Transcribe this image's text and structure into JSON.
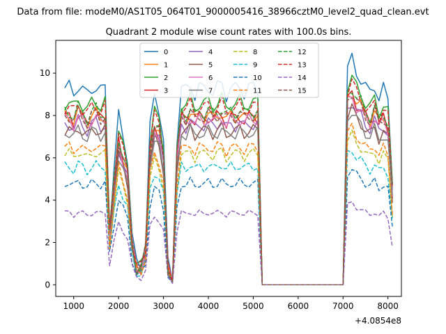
{
  "figure_title": "Data from file: modeM0/AS1T05_064T01_9000005416_38966cztM0_level2_quad_clean.evt",
  "chart_data": {
    "type": "line",
    "title": "Quadrant 2 module wise count rates with 100.0s bins.",
    "xlabel": "",
    "ylabel": "",
    "x_offset_label": "+4.0854e8",
    "xlim": [
      600,
      8300
    ],
    "ylim": [
      -0.55,
      11.55
    ],
    "x_ticks": [
      1000,
      2000,
      3000,
      4000,
      5000,
      6000,
      7000,
      8000
    ],
    "y_ticks": [
      0,
      2,
      4,
      6,
      8,
      10
    ],
    "legend_location": "upper center",
    "legend_columns": 4,
    "grid": false,
    "series": [
      {
        "name": "0",
        "color": "#1f77b4",
        "dash": "solid",
        "level": 9.3
      },
      {
        "name": "1",
        "color": "#ff7f0e",
        "dash": "solid",
        "level": 8.0
      },
      {
        "name": "2",
        "color": "#2ca02c",
        "dash": "solid",
        "level": 8.6
      },
      {
        "name": "3",
        "color": "#d62728",
        "dash": "solid",
        "level": 7.9
      },
      {
        "name": "4",
        "color": "#9467bd",
        "dash": "solid",
        "level": 7.6
      },
      {
        "name": "5",
        "color": "#8c564b",
        "dash": "solid",
        "level": 7.3
      },
      {
        "name": "6",
        "color": "#e377c2",
        "dash": "solid",
        "level": 7.8
      },
      {
        "name": "7",
        "color": "#7f7f7f",
        "dash": "solid",
        "level": 7.2
      },
      {
        "name": "8",
        "color": "#bcbd22",
        "dash": "dashed",
        "level": 6.2
      },
      {
        "name": "9",
        "color": "#17becf",
        "dash": "dashed",
        "level": 5.6
      },
      {
        "name": "10",
        "color": "#1f77b4",
        "dash": "dashed",
        "level": 4.8
      },
      {
        "name": "11",
        "color": "#ff7f0e",
        "dash": "dashed",
        "level": 6.5
      },
      {
        "name": "12",
        "color": "#2ca02c",
        "dash": "dashed",
        "level": 8.2
      },
      {
        "name": "13",
        "color": "#d62728",
        "dash": "dashed",
        "level": 8.4
      },
      {
        "name": "14",
        "color": "#9467bd",
        "dash": "dashed",
        "level": 3.4
      },
      {
        "name": "15",
        "color": "#8c564b",
        "dash": "dashed",
        "level": 8.0
      }
    ],
    "x": [
      800,
      900,
      1000,
      1100,
      1200,
      1300,
      1400,
      1500,
      1600,
      1700,
      1800,
      1900,
      2000,
      2100,
      2200,
      2300,
      2400,
      2500,
      2600,
      2700,
      2800,
      2900,
      3000,
      3100,
      3200,
      3300,
      3400,
      3500,
      3600,
      3700,
      3800,
      3900,
      4000,
      4100,
      4200,
      4300,
      4400,
      4500,
      4600,
      4700,
      4800,
      4900,
      5000,
      5100,
      5200,
      5300,
      5400,
      5500,
      5600,
      5700,
      5800,
      5900,
      6000,
      6100,
      6200,
      6300,
      6400,
      6500,
      6600,
      6700,
      6800,
      6900,
      7000,
      7100,
      7200,
      7300,
      7400,
      7500,
      7600,
      7700,
      7800,
      7900,
      8000,
      8100
    ],
    "shape": [
      1.0,
      1.0,
      0.97,
      1.02,
      0.99,
      0.96,
      1.0,
      1.01,
      0.98,
      1.0,
      0.3,
      0.6,
      0.85,
      0.75,
      0.65,
      0.25,
      0.1,
      0.1,
      0.2,
      0.8,
      0.95,
      0.9,
      0.75,
      0.1,
      0.02,
      0.75,
      1.0,
      0.98,
      1.02,
      0.97,
      1.0,
      0.99,
      1.01,
      0.98,
      1.0,
      1.02,
      0.97,
      1.0,
      0.99,
      1.01,
      0.98,
      1.0,
      1.0,
      1.0,
      0.0,
      0.0,
      0.0,
      0.0,
      0.0,
      0.0,
      0.0,
      0.0,
      0.0,
      0.0,
      0.0,
      0.0,
      0.0,
      0.0,
      0.0,
      0.0,
      0.0,
      0.0,
      0.0,
      1.1,
      1.14,
      1.08,
      1.05,
      1.0,
      0.97,
      1.02,
      0.95,
      0.99,
      0.94,
      0.55
    ]
  }
}
